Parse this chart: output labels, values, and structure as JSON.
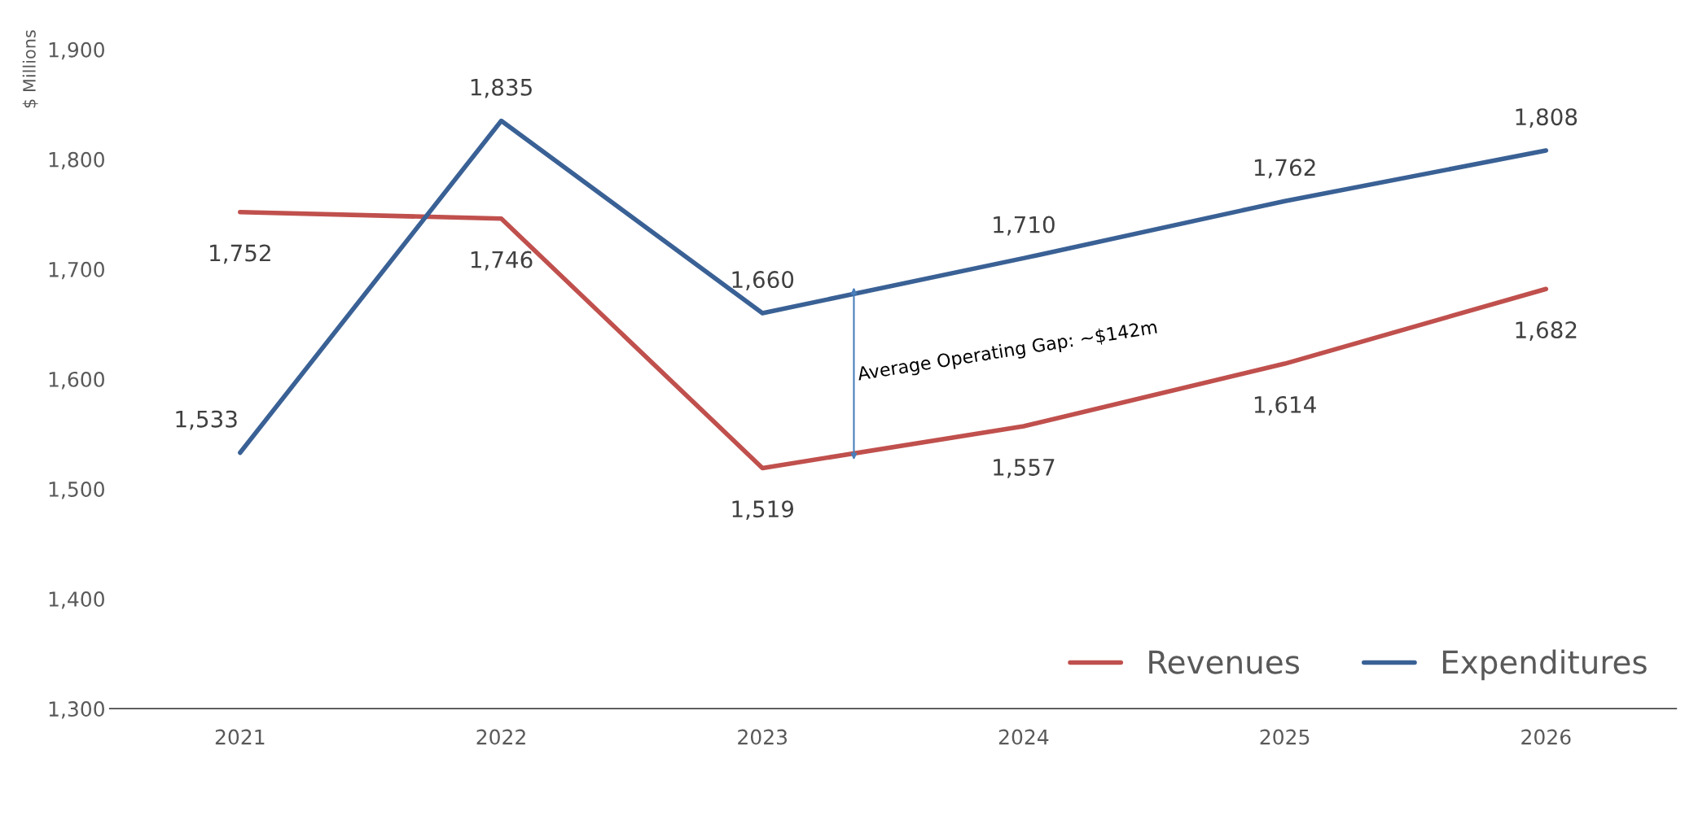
{
  "chart_data": {
    "type": "line",
    "ylabel": "$ Millions",
    "categories": [
      "2021",
      "2022",
      "2023",
      "2024",
      "2025",
      "2026"
    ],
    "series": [
      {
        "name": "Revenues",
        "color": "#c0504d",
        "values": [
          1752,
          1746,
          1519,
          1557,
          1614,
          1682
        ],
        "value_labels": [
          "1,752",
          "1,746",
          "1,519",
          "1,557",
          "1,614",
          "1,682"
        ]
      },
      {
        "name": "Expenditures",
        "color": "#3a6195",
        "values": [
          1533,
          1835,
          1660,
          1710,
          1762,
          1808
        ],
        "value_labels": [
          "1,533",
          "1,835",
          "1,660",
          "1,710",
          "1,762",
          "1,808"
        ]
      }
    ],
    "ylim": [
      1300,
      1900
    ],
    "yticks": [
      {
        "value": 1300,
        "label": "1,300"
      },
      {
        "value": 1400,
        "label": "1,400"
      },
      {
        "value": 1500,
        "label": "1,500"
      },
      {
        "value": 1600,
        "label": "1,600"
      },
      {
        "value": 1700,
        "label": "1,700"
      },
      {
        "value": 1800,
        "label": "1,800"
      },
      {
        "value": 1900,
        "label": "1,900"
      }
    ],
    "annotations": [
      "Average Operating Gap: ~$142m"
    ],
    "grid": false,
    "legend": "bottom right",
    "marker": "none",
    "line_style": "solid"
  }
}
